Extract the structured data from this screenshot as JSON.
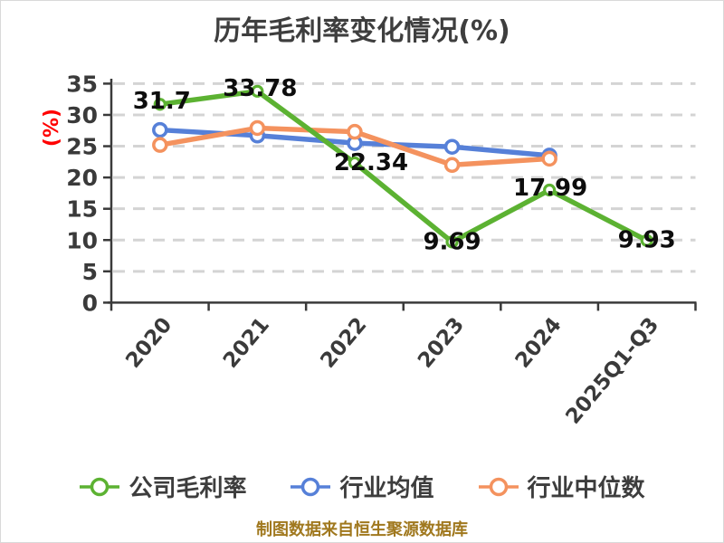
{
  "title": "历年毛利率变化情况(%)",
  "chart_data": {
    "type": "line",
    "title": "历年毛利率变化情况(%)",
    "categories": [
      "2020",
      "2021",
      "2022",
      "2023",
      "2024",
      "2025Q1-Q3"
    ],
    "series": [
      {
        "name": "公司毛利率",
        "color": "#5CB232",
        "values": [
          31.7,
          33.78,
          22.34,
          9.69,
          17.99,
          9.93
        ],
        "show_labels": true
      },
      {
        "name": "行业均值",
        "color": "#5680D8",
        "values": [
          27.6,
          26.7,
          25.5,
          24.9,
          23.5,
          null
        ],
        "show_labels": false
      },
      {
        "name": "行业中位数",
        "color": "#F4925E",
        "values": [
          25.2,
          27.9,
          27.3,
          22.0,
          23.0,
          null
        ],
        "show_labels": false
      }
    ],
    "ylabel": "(%)",
    "ylabel_color": "#FF0000",
    "ylim": [
      0,
      35
    ],
    "ytick_step": 5,
    "yticks": [
      0,
      5,
      10,
      15,
      20,
      25,
      30,
      35
    ],
    "grid": "horizontal-dashed",
    "legend_position": "bottom"
  },
  "footer": {
    "text": "制图数据来自恒生聚源数据库",
    "color": "#A0781E"
  }
}
